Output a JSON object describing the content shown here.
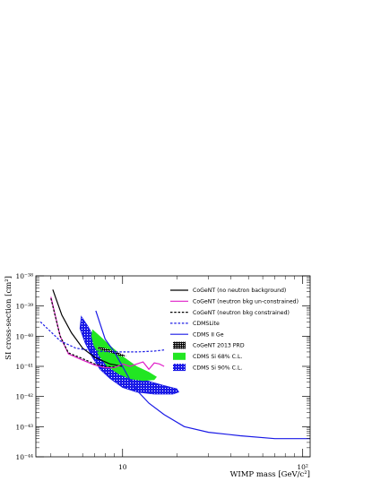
{
  "chart_data": {
    "type": "line",
    "xlabel": "WIMP mass [GeV/c²]",
    "ylabel": "SI cross-section [cm²]",
    "x_scale": "log",
    "y_scale": "log",
    "xlim": [
      3.3,
      110
    ],
    "ylim": [
      1e-44,
      1e-38
    ],
    "x_tick_labels": [
      "10",
      "10²"
    ],
    "y_tick_labels": [
      "10⁻⁴⁴",
      "10⁻⁴³",
      "10⁻⁴²",
      "10⁻⁴¹",
      "10⁻⁴⁰",
      "10⁻³⁹",
      "10⁻³⁸"
    ],
    "grid": false,
    "legend_position": "inside top-right",
    "legend": [
      {
        "label": "CoGeNT (no neutron background)",
        "color": "#000000",
        "style": "solid"
      },
      {
        "label": "CoGeNT (neutron bkg un-constrained)",
        "color": "#e020c8",
        "style": "solid"
      },
      {
        "label": "CoGeNT (neutron bkg constrained)",
        "color": "#000000",
        "style": "dashed"
      },
      {
        "label": "CDMSLite",
        "color": "#1a1ae6",
        "style": "dashed"
      },
      {
        "label": "CDMS II Ge",
        "color": "#1a1ae6",
        "style": "solid"
      },
      {
        "label": "CoGeNT 2013 PRD",
        "color": "#000000",
        "style": "box-hatched"
      },
      {
        "label": "CDMS Si 68% C.L.",
        "color": "#22e622",
        "style": "box-filled"
      },
      {
        "label": "CDMS Si 90% C.L.",
        "color": "#1a1ae6",
        "style": "box-dotted"
      }
    ],
    "series": [
      {
        "name": "CoGeNT (no neutron background)",
        "points": [
          [
            4.1,
            3.5e-39
          ],
          [
            4.6,
            5e-40
          ],
          [
            5.2,
            1.3e-40
          ],
          [
            6,
            4e-41
          ],
          [
            7,
            2e-41
          ],
          [
            8.5,
            1.2e-41
          ],
          [
            10,
            1e-41
          ]
        ]
      },
      {
        "name": "CoGeNT (neutron bkg un-constrained)",
        "points": [
          [
            4.0,
            2e-39
          ],
          [
            4.5,
            1e-40
          ],
          [
            5.0,
            2.6e-41
          ],
          [
            6,
            1.6e-41
          ],
          [
            7,
            1.1e-41
          ],
          [
            8,
            9e-42
          ],
          [
            9,
            9e-42
          ],
          [
            10,
            1.2e-41
          ],
          [
            11,
            1e-41
          ],
          [
            12,
            1.2e-41
          ],
          [
            13,
            1.4e-41
          ],
          [
            14,
            8e-42
          ],
          [
            15,
            1.3e-41
          ],
          [
            16,
            1.2e-41
          ],
          [
            17,
            1e-41
          ]
        ]
      },
      {
        "name": "CoGeNT (neutron bkg constrained)",
        "points": [
          [
            4.0,
            1.8e-39
          ],
          [
            4.5,
            1e-40
          ],
          [
            5.0,
            2.8e-41
          ],
          [
            6,
            1.8e-41
          ],
          [
            7,
            1.2e-41
          ],
          [
            8,
            1e-41
          ],
          [
            9,
            9.5e-42
          ]
        ]
      },
      {
        "name": "CDMSLite",
        "points": [
          [
            3.5,
            3e-40
          ],
          [
            4.5,
            7e-41
          ],
          [
            5.5,
            4e-41
          ],
          [
            7,
            3.2e-41
          ],
          [
            9,
            3e-41
          ],
          [
            12,
            3e-41
          ],
          [
            15,
            3.2e-41
          ],
          [
            17,
            3.5e-41
          ]
        ]
      },
      {
        "name": "CDMS II Ge",
        "points": [
          [
            7.1,
            7e-40
          ],
          [
            8,
            8e-41
          ],
          [
            9,
            3e-41
          ],
          [
            10,
            1e-41
          ],
          [
            11,
            3.5e-42
          ],
          [
            12,
            1.6e-42
          ],
          [
            14,
            6e-43
          ],
          [
            17,
            2.5e-43
          ],
          [
            22,
            1e-43
          ],
          [
            30,
            6.5e-44
          ],
          [
            45,
            5e-44
          ],
          [
            70,
            4e-44
          ],
          [
            85,
            4e-44
          ],
          [
            110,
            4e-44
          ]
        ]
      }
    ],
    "regions": [
      {
        "name": "CDMS Si 90% C.L.",
        "outline": [
          [
            5.9,
            4.5e-40
          ],
          [
            6.4,
            2.2e-40
          ],
          [
            7.2,
            6e-41
          ],
          [
            8.2,
            2.2e-41
          ],
          [
            9.5,
            1e-41
          ],
          [
            11,
            5.5e-42
          ],
          [
            14,
            3.2e-42
          ],
          [
            17,
            2.3e-42
          ],
          [
            20,
            1.8e-42
          ],
          [
            20.5,
            1.4e-42
          ],
          [
            19,
            1.2e-42
          ],
          [
            15,
            1.2e-42
          ],
          [
            12,
            1.4e-42
          ],
          [
            10,
            2e-42
          ],
          [
            8.5,
            4e-42
          ],
          [
            7.5,
            8e-42
          ],
          [
            6.8,
            2e-41
          ],
          [
            6.2,
            6e-41
          ],
          [
            5.8,
            1.8e-40
          ]
        ]
      },
      {
        "name": "CDMS Si 68% C.L.",
        "outline": [
          [
            6.8,
            1.7e-40
          ],
          [
            7.5,
            1e-40
          ],
          [
            8.5,
            5e-41
          ],
          [
            10,
            2.2e-41
          ],
          [
            12,
            1e-41
          ],
          [
            14,
            6.5e-42
          ],
          [
            15.5,
            4.5e-42
          ],
          [
            15,
            3.5e-42
          ],
          [
            13,
            3.3e-42
          ],
          [
            11,
            3.8e-42
          ],
          [
            9.5,
            5.5e-42
          ],
          [
            8.2,
            1e-41
          ],
          [
            7.4,
            2.2e-41
          ],
          [
            6.9,
            5e-41
          ],
          [
            6.7,
            1e-40
          ]
        ]
      },
      {
        "name": "CoGeNT 2013 PRD",
        "outline": [
          [
            7.3,
            4.6e-41
          ],
          [
            8,
            4e-41
          ],
          [
            9,
            3.2e-41
          ],
          [
            10,
            2.5e-41
          ],
          [
            10.5,
            2.2e-41
          ],
          [
            10,
            2.1e-41
          ],
          [
            9,
            2.6e-41
          ],
          [
            8,
            3.2e-41
          ],
          [
            7.3,
            3.8e-41
          ]
        ]
      }
    ]
  }
}
